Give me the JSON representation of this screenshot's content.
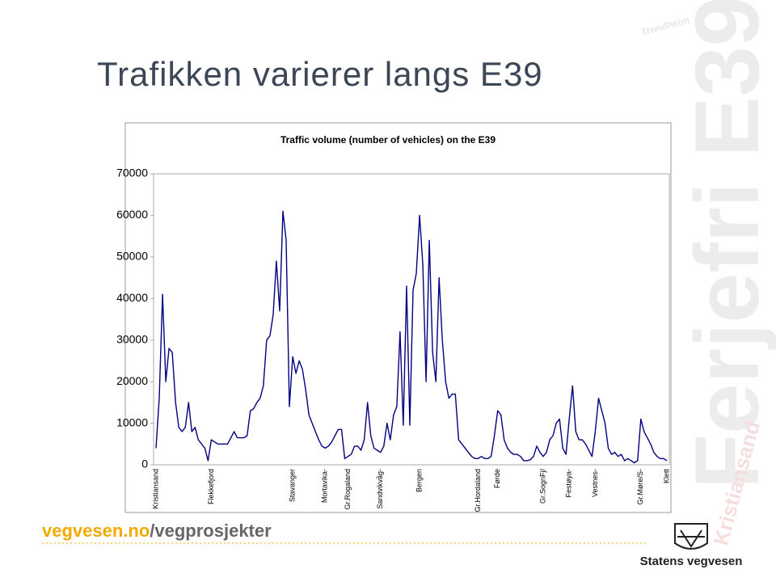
{
  "slide": {
    "title": "Trafikken varierer langs E39",
    "footer_site": "vegvesen.no",
    "footer_path": "/vegprosjekter",
    "logo_text": "Statens vegvesen",
    "watermark": "Ferjefri E39",
    "watermark_start": "Kristiansand",
    "watermark_end": "Trondheim"
  },
  "chart_data": {
    "type": "line",
    "title": "Traffic volume (number of vehicles) on the E39",
    "color": "#000080",
    "ylim": [
      0,
      70000
    ],
    "yticks": [
      0,
      10000,
      20000,
      30000,
      40000,
      50000,
      60000,
      70000
    ],
    "grid": false,
    "categories": [
      "Kristiansand",
      null,
      null,
      null,
      null,
      null,
      null,
      null,
      null,
      null,
      null,
      null,
      null,
      null,
      null,
      null,
      null,
      "Flekkefjord",
      null,
      null,
      null,
      null,
      null,
      null,
      null,
      null,
      null,
      null,
      null,
      null,
      null,
      null,
      null,
      null,
      null,
      null,
      null,
      null,
      null,
      null,
      null,
      null,
      "Stavanger",
      null,
      null,
      null,
      null,
      null,
      null,
      null,
      null,
      null,
      "Mortavika-",
      null,
      null,
      null,
      null,
      null,
      null,
      "Gr.Rogaland",
      null,
      null,
      null,
      null,
      null,
      null,
      null,
      null,
      null,
      "Sandvikvåg-",
      null,
      null,
      null,
      null,
      null,
      null,
      null,
      null,
      null,
      null,
      null,
      "Bergen",
      null,
      null,
      null,
      null,
      null,
      null,
      null,
      null,
      null,
      null,
      null,
      null,
      null,
      null,
      null,
      null,
      null,
      "Gr.Hordaland",
      null,
      null,
      null,
      null,
      null,
      "Førde",
      null,
      null,
      null,
      null,
      null,
      null,
      null,
      null,
      null,
      null,
      null,
      null,
      null,
      "Gr.SognFj/",
      null,
      null,
      null,
      null,
      null,
      null,
      null,
      "Festøya-",
      null,
      null,
      null,
      null,
      null,
      null,
      null,
      "Vestnes-",
      null,
      null,
      null,
      null,
      null,
      null,
      null,
      null,
      null,
      null,
      null,
      null,
      null,
      "Gr.Møre/S-",
      null,
      null,
      null,
      null,
      null,
      null,
      null,
      "Klett"
    ],
    "values": [
      4000,
      16000,
      41000,
      20000,
      28000,
      27000,
      15000,
      9000,
      8000,
      9000,
      15000,
      8000,
      9000,
      6000,
      5000,
      4000,
      1000,
      6000,
      5500,
      5000,
      5000,
      5000,
      5000,
      6500,
      8000,
      6500,
      6500,
      6500,
      7000,
      13000,
      13500,
      15000,
      16000,
      19000,
      30000,
      31000,
      36000,
      49000,
      37000,
      61000,
      54000,
      14000,
      26000,
      22000,
      25000,
      23000,
      18000,
      12000,
      10000,
      8000,
      6000,
      4500,
      4000,
      4500,
      5500,
      7000,
      8500,
      8500,
      1500,
      2000,
      2500,
      4500,
      4500,
      3500,
      6000,
      15000,
      7000,
      4000,
      3500,
      3000,
      4500,
      10000,
      6000,
      12000,
      14000,
      32000,
      9500,
      43000,
      9500,
      42000,
      46000,
      60000,
      48000,
      20000,
      54000,
      27000,
      20000,
      45000,
      30000,
      20000,
      16000,
      17000,
      17000,
      6000,
      5000,
      4000,
      3000,
      2000,
      1500,
      1500,
      2000,
      1500,
      1500,
      2000,
      7000,
      13000,
      12000,
      6000,
      4000,
      3000,
      2500,
      2500,
      2000,
      1000,
      1000,
      1200,
      2000,
      4500,
      3000,
      2000,
      3000,
      6000,
      7000,
      10000,
      11000,
      4000,
      2500,
      11000,
      19000,
      8000,
      6000,
      6000,
      5000,
      3500,
      2000,
      8000,
      16000,
      13000,
      10000,
      4000,
      2500,
      3000,
      2000,
      2500,
      1000,
      1500,
      1000,
      500,
      1000,
      11000,
      8000,
      6500,
      5000,
      3000,
      2000,
      1500,
      1500,
      1000
    ]
  }
}
